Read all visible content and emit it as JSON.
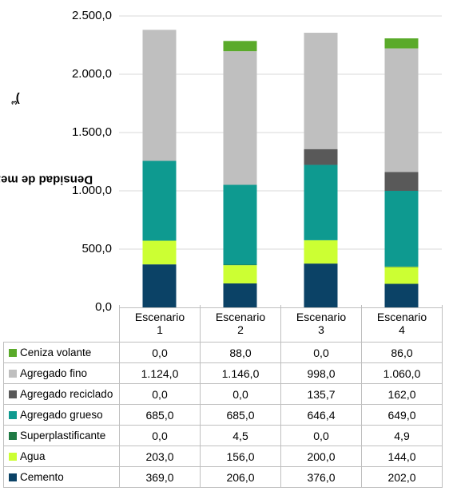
{
  "chart_data": {
    "type": "bar",
    "stacked": true,
    "ylabel": "Densidad de mezcla (kg/m",
    "ylabel_sup": "3",
    "ylabel_end": ")",
    "ylim": [
      0,
      2500
    ],
    "yticks": [
      "0,0",
      "500,0",
      "1.000,0",
      "1.500,0",
      "2.000,0",
      "2.500,0"
    ],
    "grid": true,
    "legend": "data-table",
    "categories": [
      {
        "line1": "Escenario",
        "line2": "1"
      },
      {
        "line1": "Escenario",
        "line2": "2"
      },
      {
        "line1": "Escenario",
        "line2": "3"
      },
      {
        "line1": "Escenario",
        "line2": "4"
      }
    ],
    "series": [
      {
        "name": "Cemento",
        "color": "#0b4266",
        "values": [
          369,
          206,
          376,
          202
        ],
        "labels": [
          "369,0",
          "206,0",
          "376,0",
          "202,0"
        ]
      },
      {
        "name": "Agua",
        "color": "#ccff33",
        "values": [
          203,
          156,
          200,
          144
        ],
        "labels": [
          "203,0",
          "156,0",
          "200,0",
          "144,0"
        ]
      },
      {
        "name": "Superplastificante",
        "color": "#1f7a44",
        "values": [
          0,
          4.5,
          0,
          4.9
        ],
        "labels": [
          "0,0",
          "4,5",
          "0,0",
          "4,9"
        ]
      },
      {
        "name": "Agregado grueso",
        "color": "#0e9a90",
        "values": [
          685,
          685,
          646.4,
          649
        ],
        "labels": [
          "685,0",
          "685,0",
          "646,4",
          "649,0"
        ]
      },
      {
        "name": "Agregado reciclado",
        "color": "#595959",
        "values": [
          0,
          0,
          135.7,
          162
        ],
        "labels": [
          "0,0",
          "0,0",
          "135,7",
          "162,0"
        ]
      },
      {
        "name": "Agregado fino",
        "color": "#bfbfbf",
        "values": [
          1124,
          1146,
          998,
          1060
        ],
        "labels": [
          "1.124,0",
          "1.146,0",
          "998,0",
          "1.060,0"
        ]
      },
      {
        "name": "Ceniza volante",
        "color": "#5aaa2a",
        "values": [
          0,
          88,
          0,
          86
        ],
        "labels": [
          "0,0",
          "88,0",
          "0,0",
          "86,0"
        ]
      }
    ]
  }
}
